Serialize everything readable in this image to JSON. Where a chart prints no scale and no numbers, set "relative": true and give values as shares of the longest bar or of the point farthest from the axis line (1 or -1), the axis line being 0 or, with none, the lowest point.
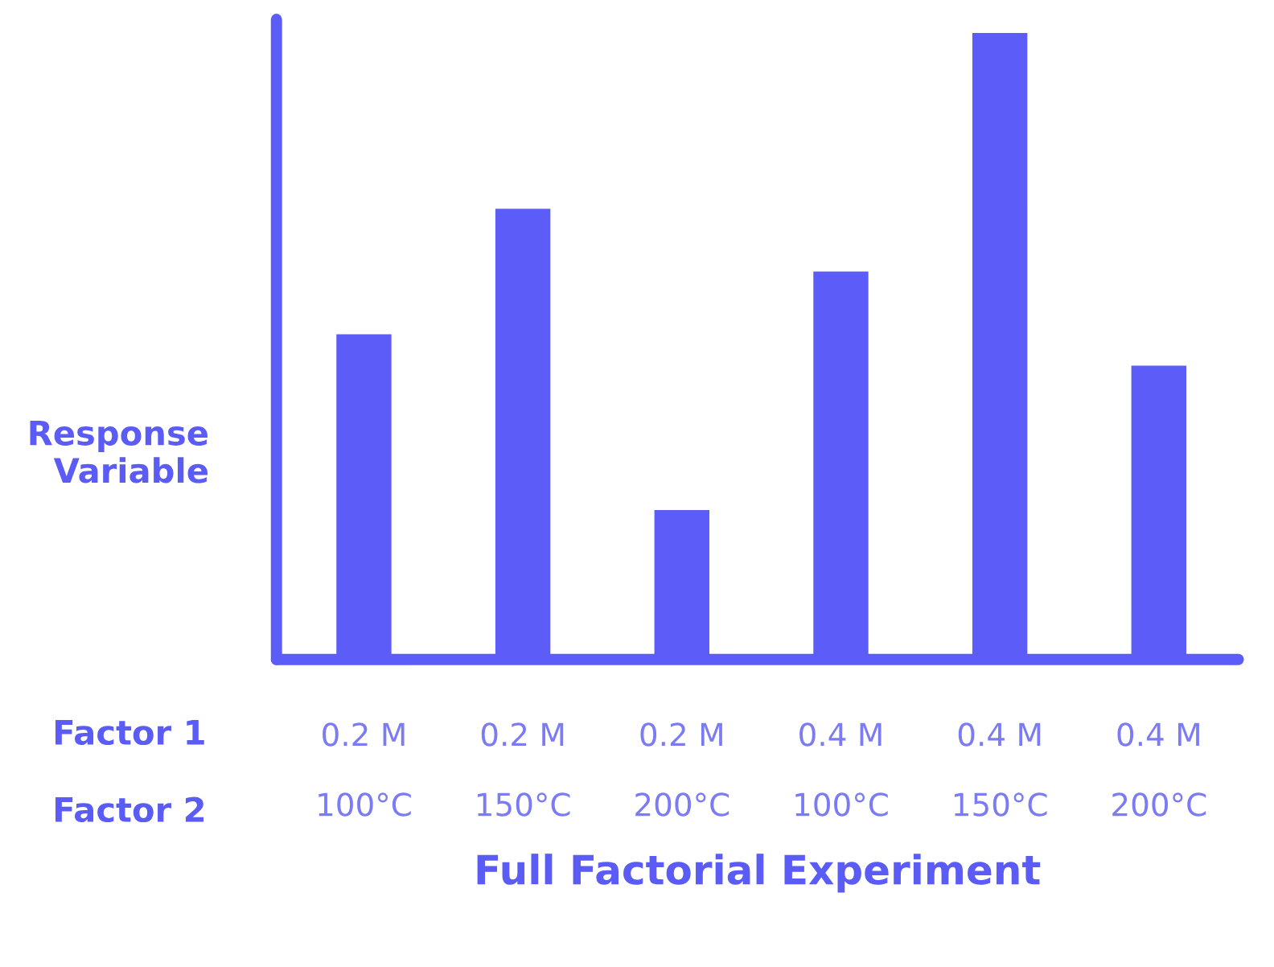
{
  "chart_data": {
    "type": "bar",
    "relative": true,
    "xlabel": "Full Factorial Experiment",
    "ylabel": "Response\nVariable",
    "categories": [
      "0.2 M\n\n100°C",
      "0.2 M\n\n150°C",
      "0.2 M\n\n200°C",
      "0.4 M\n\n100°C",
      "0.4 M\n\n150°C",
      "0.4 M\n\n200°C"
    ],
    "values": [
      0.52,
      0.72,
      0.24,
      0.62,
      1,
      0.47
    ],
    "color": "#5c5cf8",
    "annotations": [
      "Factor 1",
      "Factor 2"
    ],
    "grid": false,
    "legend": false
  }
}
